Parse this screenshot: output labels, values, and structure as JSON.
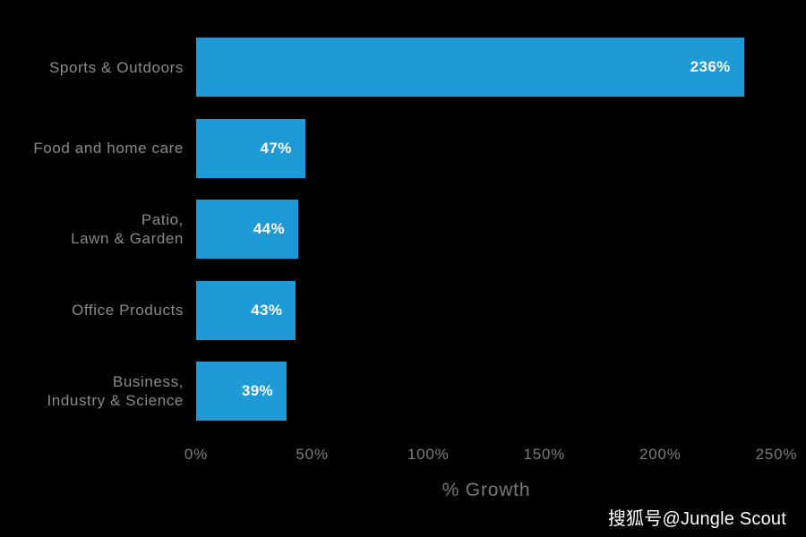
{
  "chart_data": {
    "type": "bar",
    "orientation": "horizontal",
    "title": "",
    "xlabel": "% Growth",
    "ylabel": "",
    "xlim": [
      0,
      250
    ],
    "grid": false,
    "background_color": "#000000",
    "bar_color": "#1e9ad6",
    "category_color": "#8a8a8a",
    "tick_color": "#7c7c7c",
    "value_label_color": "#ffffff",
    "categories": [
      "Sports & Outdoors",
      "Food and home care",
      "Patio, Lawn & Garden",
      "Office Products",
      "Business, Industry & Science"
    ],
    "category_lines": [
      [
        "Sports & Outdoors"
      ],
      [
        "Food and home care"
      ],
      [
        "Patio,",
        "Lawn & Garden"
      ],
      [
        "Office Products"
      ],
      [
        "Business,",
        "Industry & Science"
      ]
    ],
    "values": [
      236,
      47,
      44,
      43,
      39
    ],
    "value_labels": [
      "236%",
      "47%",
      "44%",
      "43%",
      "39%"
    ],
    "x_ticks": [
      0,
      50,
      100,
      150,
      200,
      250
    ],
    "x_tick_labels": [
      "0%",
      "50%",
      "100%",
      "150%",
      "200%",
      "250%"
    ]
  },
  "watermark": {
    "text": "搜狐号@Jungle Scout"
  }
}
